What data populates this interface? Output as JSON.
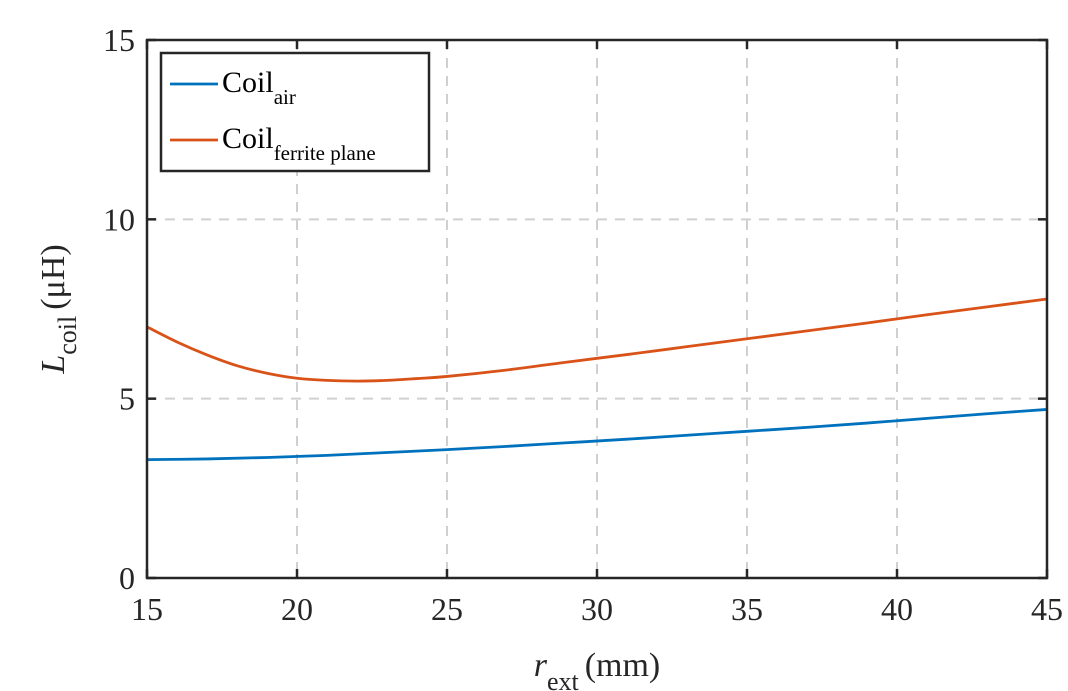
{
  "chart_data": {
    "type": "line",
    "title": "",
    "xlabel": {
      "main": "r",
      "sub": "ext",
      "unit": "(mm)"
    },
    "ylabel": {
      "main": "L",
      "sub": "coil",
      "unit": "(μH)"
    },
    "xlim": [
      15,
      45
    ],
    "ylim": [
      0,
      15
    ],
    "xticks": [
      15,
      20,
      25,
      30,
      35,
      40,
      45
    ],
    "yticks": [
      0,
      5,
      10,
      15
    ],
    "xtick_labels": [
      "15",
      "20",
      "25",
      "30",
      "35",
      "40",
      "45"
    ],
    "ytick_labels": [
      "0",
      "5",
      "10",
      "15"
    ],
    "grid": true,
    "legend_position": "top-left",
    "series": [
      {
        "name": "Coil",
        "name_sub": "air",
        "color": "#0072BD",
        "x": [
          15,
          17,
          19,
          21,
          23,
          25,
          27,
          29,
          31,
          33,
          35,
          37,
          39,
          41,
          43,
          45
        ],
        "y": [
          3.3,
          3.32,
          3.36,
          3.42,
          3.5,
          3.58,
          3.67,
          3.77,
          3.87,
          3.98,
          4.09,
          4.2,
          4.32,
          4.45,
          4.58,
          4.7
        ]
      },
      {
        "name": "Coil",
        "name_sub": "ferrite plane",
        "color": "#D95319",
        "x": [
          15,
          16,
          17,
          18,
          19,
          20,
          21,
          22,
          23,
          24,
          25,
          27,
          29,
          31,
          33,
          35,
          37,
          39,
          41,
          43,
          45
        ],
        "y": [
          7.0,
          6.58,
          6.22,
          5.92,
          5.71,
          5.57,
          5.51,
          5.49,
          5.51,
          5.56,
          5.62,
          5.8,
          6.02,
          6.23,
          6.45,
          6.67,
          6.89,
          7.11,
          7.34,
          7.56,
          7.78
        ]
      }
    ]
  }
}
